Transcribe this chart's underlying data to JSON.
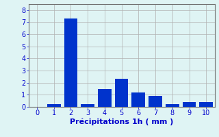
{
  "categories": [
    0,
    1,
    2,
    3,
    4,
    5,
    6,
    7,
    8,
    9,
    10
  ],
  "values": [
    0.0,
    0.2,
    7.3,
    0.2,
    1.5,
    2.3,
    1.2,
    0.9,
    0.2,
    0.4,
    0.4
  ],
  "bar_color": "#0033cc",
  "background_color": "#dff4f4",
  "grid_color": "#b0b0b0",
  "spine_color": "#707070",
  "xlabel": "Précipitations 1h ( mm )",
  "xlabel_color": "#0000cc",
  "tick_color": "#0000cc",
  "ylim": [
    0,
    8.5
  ],
  "yticks": [
    0,
    1,
    2,
    3,
    4,
    5,
    6,
    7,
    8
  ],
  "xlim": [
    -0.5,
    10.5
  ],
  "bar_width": 0.8,
  "tick_fontsize": 7,
  "xlabel_fontsize": 8
}
